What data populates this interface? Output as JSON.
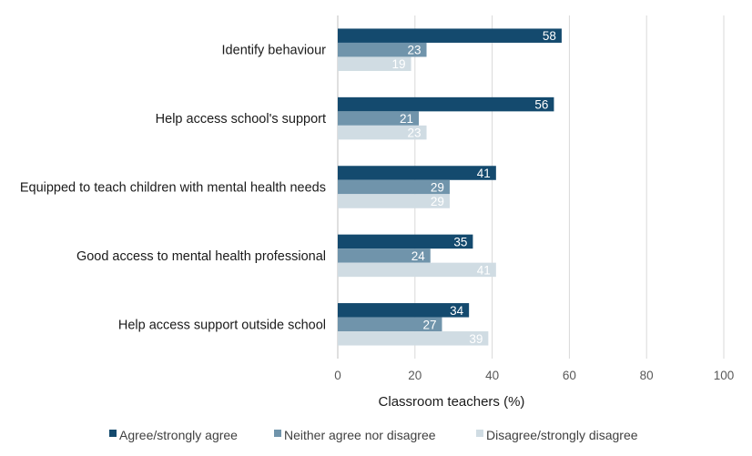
{
  "chart_data": {
    "type": "bar",
    "orientation": "horizontal",
    "categories": [
      "Identify behaviour",
      "Help access school's support",
      "Equipped to teach children with mental health needs",
      "Good access to mental health professional",
      "Help access support outside school"
    ],
    "series": [
      {
        "name": "Agree/strongly agree",
        "color": "#144a6e",
        "values": [
          58,
          56,
          41,
          35,
          34
        ]
      },
      {
        "name": "Neither agree nor disagree",
        "color": "#7094ab",
        "values": [
          23,
          21,
          29,
          24,
          27
        ]
      },
      {
        "name": "Disagree/strongly disagree",
        "color": "#d0dce3",
        "values": [
          19,
          23,
          29,
          41,
          39
        ]
      }
    ],
    "xlabel": "Classroom teachers (%)",
    "ylabel": "",
    "xlim": [
      0,
      100
    ],
    "xticks": [
      0,
      20,
      40,
      60,
      80,
      100
    ],
    "grid": true,
    "legend": "bottom",
    "data_labels": true
  }
}
